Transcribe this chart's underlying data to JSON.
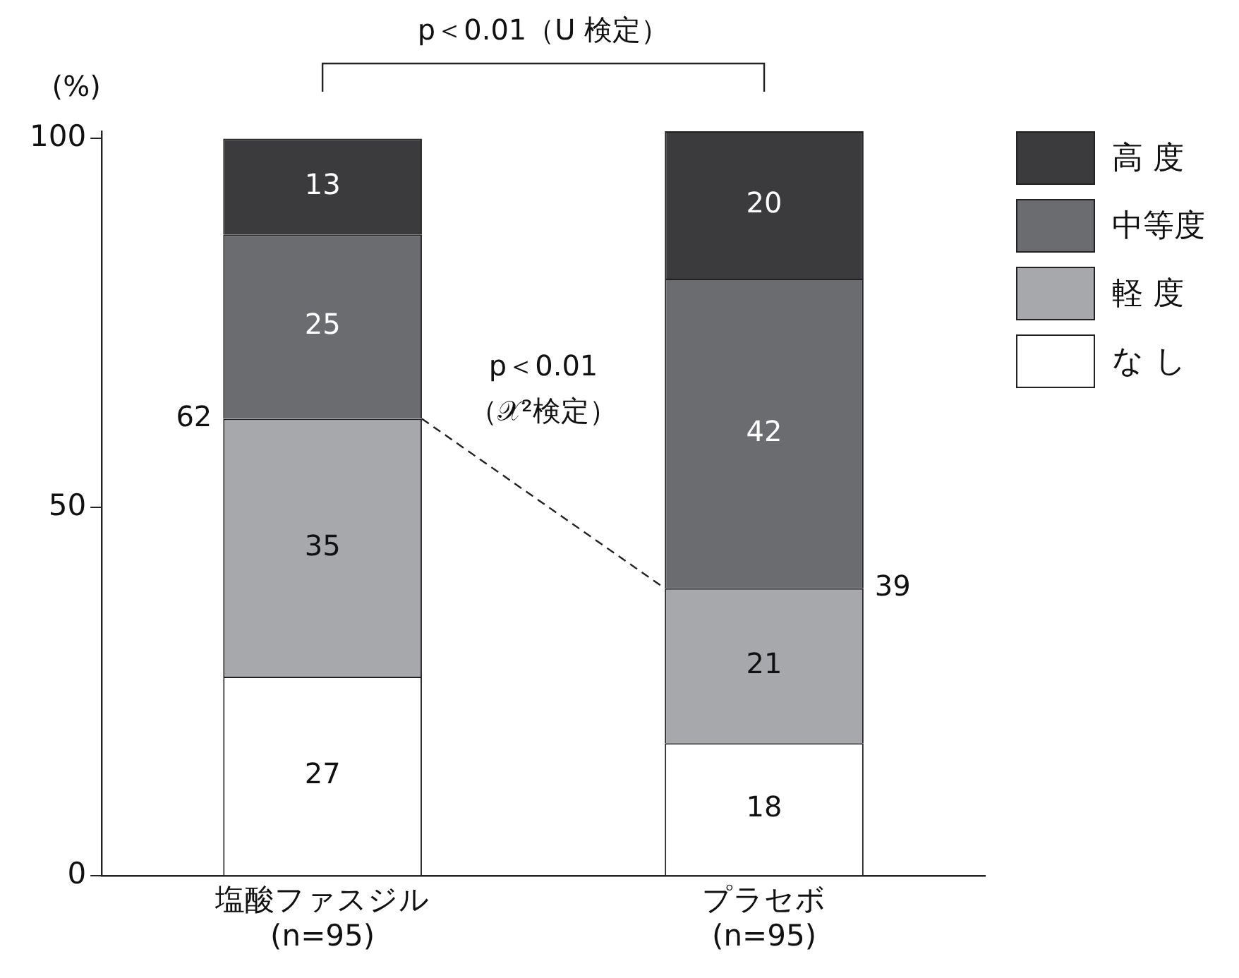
{
  "chart_data": {
    "type": "bar",
    "stacked": true,
    "ylabel": "(%)",
    "categories": [
      "塩酸ファスジル\n(n=95)",
      "プラセボ\n(n=95)"
    ],
    "series": [
      {
        "name": "な し",
        "color": "#ffffff",
        "values": [
          27,
          18
        ]
      },
      {
        "name": "軽 度",
        "color": "#a7a8ab",
        "values": [
          35,
          21
        ]
      },
      {
        "name": "中等度",
        "color": "#6b6c70",
        "values": [
          25,
          42
        ]
      },
      {
        "name": "高 度",
        "color": "#3b3b3d",
        "values": [
          13,
          20
        ]
      }
    ],
    "ylim": [
      0,
      101
    ],
    "yticks": [
      0,
      50,
      100
    ],
    "grid": false,
    "legend": "right",
    "data_labels": true,
    "annotations": [
      "p＜0.01（U 検定）",
      "p＜0.01\n（𝒳²検定）",
      "62",
      "39"
    ]
  }
}
